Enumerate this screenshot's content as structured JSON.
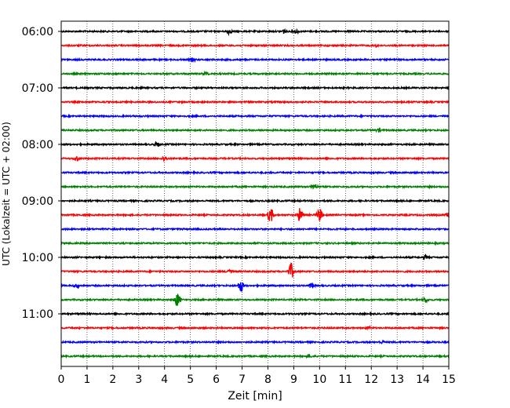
{
  "chart_data": {
    "type": "line",
    "title": "",
    "xlabel": "Zeit  [min]",
    "ylabel": "UTC (Lokalzeit = UTC + 02:00)",
    "xlim": [
      0,
      15
    ],
    "x_ticks": [
      0,
      1,
      2,
      3,
      4,
      5,
      6,
      7,
      8,
      9,
      10,
      11,
      12,
      13,
      14,
      15
    ],
    "x_grid": true,
    "y_ticks": [
      {
        "value": "06:00",
        "label": "06:00"
      },
      {
        "value": "07:00",
        "label": "07:00"
      },
      {
        "value": "08:00",
        "label": "08:00"
      },
      {
        "value": "09:00",
        "label": "09:00"
      },
      {
        "value": "10:00",
        "label": "10:00"
      },
      {
        "value": "11:00",
        "label": "11:00"
      }
    ],
    "trace_cycle_colors": [
      "#000000",
      "#ff0000",
      "#0000ff",
      "#008000"
    ],
    "series": [
      {
        "start": "06:00",
        "color": "#000000",
        "events": [
          {
            "x": 6.5,
            "amp": 3
          },
          {
            "x": 8.6,
            "amp": 2.5
          },
          {
            "x": 9.1,
            "amp": 2.5
          }
        ]
      },
      {
        "start": "06:15",
        "color": "#ff0000",
        "events": [
          {
            "x": 12.2,
            "amp": 1.5
          }
        ]
      },
      {
        "start": "06:30",
        "color": "#0000ff",
        "events": [
          {
            "x": 5.1,
            "amp": 2
          }
        ]
      },
      {
        "start": "06:45",
        "color": "#008000",
        "events": [
          {
            "x": 5.6,
            "amp": 2
          }
        ]
      },
      {
        "start": "07:00",
        "color": "#000000",
        "events": []
      },
      {
        "start": "07:15",
        "color": "#ff0000",
        "events": []
      },
      {
        "start": "07:30",
        "color": "#0000ff",
        "events": []
      },
      {
        "start": "07:45",
        "color": "#008000",
        "events": [
          {
            "x": 12.3,
            "amp": 2
          }
        ]
      },
      {
        "start": "08:00",
        "color": "#000000",
        "events": [
          {
            "x": 3.7,
            "amp": 2.5
          }
        ]
      },
      {
        "start": "08:15",
        "color": "#ff0000",
        "events": [
          {
            "x": 0.6,
            "amp": 3
          },
          {
            "x": 4.0,
            "amp": 3.5
          }
        ]
      },
      {
        "start": "08:30",
        "color": "#0000ff",
        "events": []
      },
      {
        "start": "08:45",
        "color": "#008000",
        "events": [
          {
            "x": 9.8,
            "amp": 4
          }
        ]
      },
      {
        "start": "09:00",
        "color": "#000000",
        "events": []
      },
      {
        "start": "09:15",
        "color": "#ff0000",
        "events": [
          {
            "x": 8.1,
            "amp": 10
          },
          {
            "x": 9.25,
            "amp": 9
          },
          {
            "x": 10.0,
            "amp": 8
          },
          {
            "x": 15.0,
            "amp": 4
          }
        ]
      },
      {
        "start": "09:30",
        "color": "#0000ff",
        "events": []
      },
      {
        "start": "09:45",
        "color": "#008000",
        "events": []
      },
      {
        "start": "10:00",
        "color": "#000000",
        "events": [
          {
            "x": 14.1,
            "amp": 2.5
          }
        ]
      },
      {
        "start": "10:15",
        "color": "#ff0000",
        "events": [
          {
            "x": 8.9,
            "amp": 10
          },
          {
            "x": 6.5,
            "amp": 2.5
          }
        ]
      },
      {
        "start": "10:30",
        "color": "#0000ff",
        "events": [
          {
            "x": 6.95,
            "amp": 8
          },
          {
            "x": 9.7,
            "amp": 3
          },
          {
            "x": 0.6,
            "amp": 2.5
          }
        ]
      },
      {
        "start": "10:45",
        "color": "#008000",
        "events": [
          {
            "x": 4.5,
            "amp": 9
          },
          {
            "x": 14.1,
            "amp": 3
          }
        ]
      },
      {
        "start": "11:00",
        "color": "#000000",
        "events": []
      },
      {
        "start": "11:15",
        "color": "#ff0000",
        "events": [
          {
            "x": 11.9,
            "amp": 1.5
          }
        ]
      },
      {
        "start": "11:30",
        "color": "#0000ff",
        "events": [
          {
            "x": 12.4,
            "amp": 1.5
          }
        ]
      },
      {
        "start": "11:45",
        "color": "#008000",
        "events": [
          {
            "x": 9.6,
            "amp": 2
          }
        ]
      }
    ]
  }
}
